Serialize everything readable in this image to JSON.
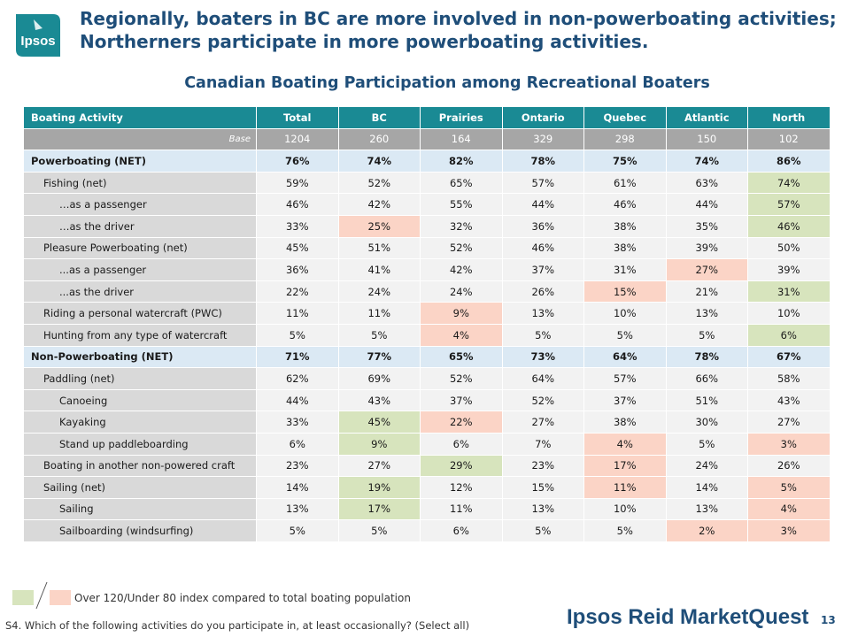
{
  "logo": {
    "text": "Ipsos",
    "color": "#1a8a94"
  },
  "headline": {
    "line1": "Regionally, boaters in BC are more involved in non-powerboating activities;",
    "line2": "Northerners participate in more powerboating activities."
  },
  "subtitle": "Canadian Boating Participation among Recreational Boaters",
  "table": {
    "headers": [
      "Boating Activity",
      "Total",
      "BC",
      "Prairies",
      "Ontario",
      "Quebec",
      "Atlantic",
      "North"
    ],
    "base": {
      "label": "Base",
      "values": [
        "1204",
        "260",
        "164",
        "329",
        "298",
        "150",
        "102"
      ]
    },
    "rows": [
      {
        "label": "Powerboating (NET)",
        "kind": "net",
        "indent": 0,
        "values": [
          "76%",
          "74%",
          "82%",
          "78%",
          "75%",
          "74%",
          "86%"
        ],
        "flags": [
          "",
          "",
          "",
          "",
          "",
          "",
          ""
        ]
      },
      {
        "label": "Fishing (net)",
        "kind": "sub",
        "indent": 1,
        "values": [
          "59%",
          "52%",
          "65%",
          "57%",
          "61%",
          "63%",
          "74%"
        ],
        "flags": [
          "",
          "",
          "",
          "",
          "",
          "",
          "hi"
        ]
      },
      {
        "label": "…as a passenger",
        "kind": "sub",
        "indent": 2,
        "values": [
          "46%",
          "42%",
          "55%",
          "44%",
          "46%",
          "44%",
          "57%"
        ],
        "flags": [
          "",
          "",
          "",
          "",
          "",
          "",
          "hi"
        ]
      },
      {
        "label": "…as the driver",
        "kind": "sub",
        "indent": 2,
        "values": [
          "33%",
          "25%",
          "32%",
          "36%",
          "38%",
          "35%",
          "46%"
        ],
        "flags": [
          "",
          "lo",
          "",
          "",
          "",
          "",
          "hi"
        ]
      },
      {
        "label": "Pleasure Powerboating (net)",
        "kind": "sub",
        "indent": 1,
        "values": [
          "45%",
          "51%",
          "52%",
          "46%",
          "38%",
          "39%",
          "50%"
        ],
        "flags": [
          "",
          "",
          "",
          "",
          "",
          "",
          ""
        ]
      },
      {
        "label": "...as a passenger",
        "kind": "sub",
        "indent": 2,
        "values": [
          "36%",
          "41%",
          "42%",
          "37%",
          "31%",
          "27%",
          "39%"
        ],
        "flags": [
          "",
          "",
          "",
          "",
          "",
          "lo",
          ""
        ]
      },
      {
        "label": "...as the driver",
        "kind": "sub",
        "indent": 2,
        "values": [
          "22%",
          "24%",
          "24%",
          "26%",
          "15%",
          "21%",
          "31%"
        ],
        "flags": [
          "",
          "",
          "",
          "",
          "lo",
          "",
          "hi"
        ]
      },
      {
        "label": "Riding a personal watercraft (PWC)",
        "kind": "sub",
        "indent": 1,
        "values": [
          "11%",
          "11%",
          "9%",
          "13%",
          "10%",
          "13%",
          "10%"
        ],
        "flags": [
          "",
          "",
          "lo",
          "",
          "",
          "",
          ""
        ]
      },
      {
        "label": "Hunting from any type of watercraft",
        "kind": "sub",
        "indent": 1,
        "values": [
          "5%",
          "5%",
          "4%",
          "5%",
          "5%",
          "5%",
          "6%"
        ],
        "flags": [
          "",
          "",
          "lo",
          "",
          "",
          "",
          "hi"
        ]
      },
      {
        "label": "Non-Powerboating (NET)",
        "kind": "net",
        "indent": 0,
        "values": [
          "71%",
          "77%",
          "65%",
          "73%",
          "64%",
          "78%",
          "67%"
        ],
        "flags": [
          "",
          "",
          "",
          "",
          "",
          "",
          ""
        ]
      },
      {
        "label": "Paddling (net)",
        "kind": "sub",
        "indent": 1,
        "values": [
          "62%",
          "69%",
          "52%",
          "64%",
          "57%",
          "66%",
          "58%"
        ],
        "flags": [
          "",
          "",
          "",
          "",
          "",
          "",
          ""
        ]
      },
      {
        "label": "Canoeing",
        "kind": "sub",
        "indent": 2,
        "values": [
          "44%",
          "43%",
          "37%",
          "52%",
          "37%",
          "51%",
          "43%"
        ],
        "flags": [
          "",
          "",
          "",
          "",
          "",
          "",
          ""
        ]
      },
      {
        "label": "Kayaking",
        "kind": "sub",
        "indent": 2,
        "values": [
          "33%",
          "45%",
          "22%",
          "27%",
          "38%",
          "30%",
          "27%"
        ],
        "flags": [
          "",
          "hi",
          "lo",
          "",
          "",
          "",
          ""
        ]
      },
      {
        "label": "Stand up paddleboarding",
        "kind": "sub",
        "indent": 2,
        "values": [
          "6%",
          "9%",
          "6%",
          "7%",
          "4%",
          "5%",
          "3%"
        ],
        "flags": [
          "",
          "hi",
          "",
          "",
          "lo",
          "",
          "lo"
        ]
      },
      {
        "label": "Boating in another non-powered craft",
        "kind": "sub",
        "indent": 1,
        "values": [
          "23%",
          "27%",
          "29%",
          "23%",
          "17%",
          "24%",
          "26%"
        ],
        "flags": [
          "",
          "",
          "hi",
          "",
          "lo",
          "",
          ""
        ]
      },
      {
        "label": "Sailing (net)",
        "kind": "sub",
        "indent": 1,
        "values": [
          "14%",
          "19%",
          "12%",
          "15%",
          "11%",
          "14%",
          "5%"
        ],
        "flags": [
          "",
          "hi",
          "",
          "",
          "lo",
          "",
          "lo"
        ]
      },
      {
        "label": "Sailing",
        "kind": "sub",
        "indent": 2,
        "values": [
          "13%",
          "17%",
          "11%",
          "13%",
          "10%",
          "13%",
          "4%"
        ],
        "flags": [
          "",
          "hi",
          "",
          "",
          "",
          "",
          "lo"
        ]
      },
      {
        "label": "Sailboarding (windsurfing)",
        "kind": "sub",
        "indent": 2,
        "values": [
          "5%",
          "5%",
          "6%",
          "5%",
          "5%",
          "2%",
          "3%"
        ],
        "flags": [
          "",
          "",
          "",
          "",
          "",
          "lo",
          "lo"
        ]
      }
    ]
  },
  "legend": {
    "text": "Over 120/Under 80 index compared to total boating population",
    "over_color": "#d7e4bd",
    "under_color": "#fbd4c6"
  },
  "footnote": "S4. Which of the following activities do you participate in, at least occasionally? (Select all)",
  "brand": "Ipsos Reid MarketQuest",
  "page_number": "13"
}
